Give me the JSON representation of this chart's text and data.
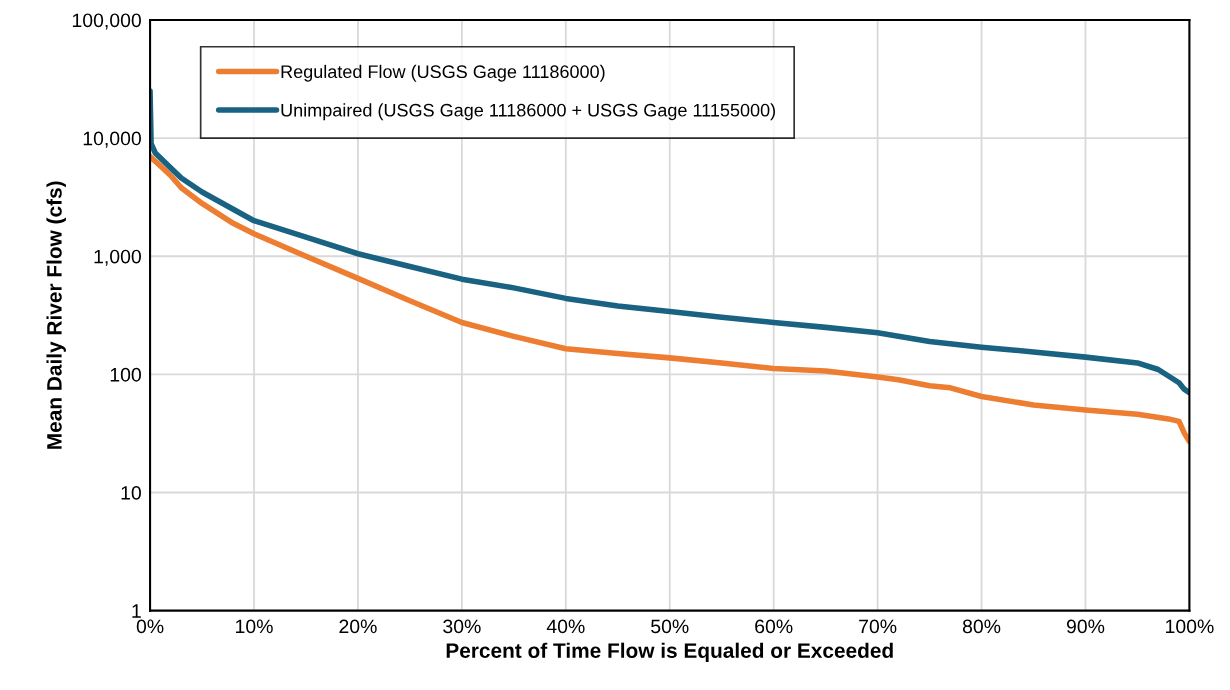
{
  "chart_data": {
    "type": "line",
    "xlabel": "Percent of Time Flow is Equaled or Exceeded",
    "ylabel": "Mean Daily River Flow (cfs)",
    "log": "y",
    "grid": true,
    "legend": "top left",
    "xlim": [
      0,
      100
    ],
    "xticks": [
      {
        "value": 0,
        "label": "0%"
      },
      {
        "value": 10,
        "label": "10%"
      },
      {
        "value": 20,
        "label": "20%"
      },
      {
        "value": 30,
        "label": "30%"
      },
      {
        "value": 40,
        "label": "40%"
      },
      {
        "value": 50,
        "label": "50%"
      },
      {
        "value": 60,
        "label": "60%"
      },
      {
        "value": 70,
        "label": "70%"
      },
      {
        "value": 80,
        "label": "80%"
      },
      {
        "value": 90,
        "label": "90%"
      },
      {
        "value": 100,
        "label": "100%"
      }
    ],
    "ylim": [
      1,
      100000
    ],
    "yticks": [
      {
        "value": 1,
        "label": "1"
      },
      {
        "value": 10,
        "label": "10"
      },
      {
        "value": 100,
        "label": "100"
      },
      {
        "value": 1000,
        "label": "1,000"
      },
      {
        "value": 10000,
        "label": "10,000"
      },
      {
        "value": 100000,
        "label": "100,000"
      }
    ],
    "series": [
      {
        "name": "Regulated Flow (USGS Gage 11186000)",
        "color": "#ed7d31",
        "x": [
          0,
          1,
          2,
          3,
          5,
          8,
          10,
          15,
          20,
          25,
          30,
          35,
          40,
          45,
          50,
          55,
          60,
          65,
          70,
          72,
          75,
          77,
          80,
          85,
          90,
          95,
          98,
          99,
          99.5,
          100
        ],
        "values": [
          7000,
          5800,
          4800,
          3800,
          2800,
          1900,
          1550,
          1000,
          650,
          420,
          275,
          210,
          165,
          150,
          138,
          125,
          112,
          107,
          95,
          90,
          80,
          77,
          65,
          55,
          50,
          46,
          42,
          40,
          32,
          27
        ]
      },
      {
        "name": "Unimpaired (USGS Gage 11186000 + USGS Gage 11155000)",
        "color": "#1a6282",
        "x": [
          0,
          0.1,
          0.5,
          1,
          2,
          3,
          5,
          8,
          10,
          15,
          20,
          25,
          30,
          35,
          40,
          45,
          50,
          55,
          60,
          65,
          70,
          75,
          80,
          85,
          90,
          95,
          97,
          99,
          99.5,
          100
        ],
        "values": [
          25000,
          9000,
          7500,
          6800,
          5600,
          4600,
          3500,
          2500,
          2000,
          1450,
          1050,
          820,
          640,
          540,
          440,
          380,
          340,
          305,
          275,
          250,
          225,
          190,
          170,
          155,
          140,
          125,
          110,
          85,
          75,
          70
        ]
      }
    ]
  }
}
